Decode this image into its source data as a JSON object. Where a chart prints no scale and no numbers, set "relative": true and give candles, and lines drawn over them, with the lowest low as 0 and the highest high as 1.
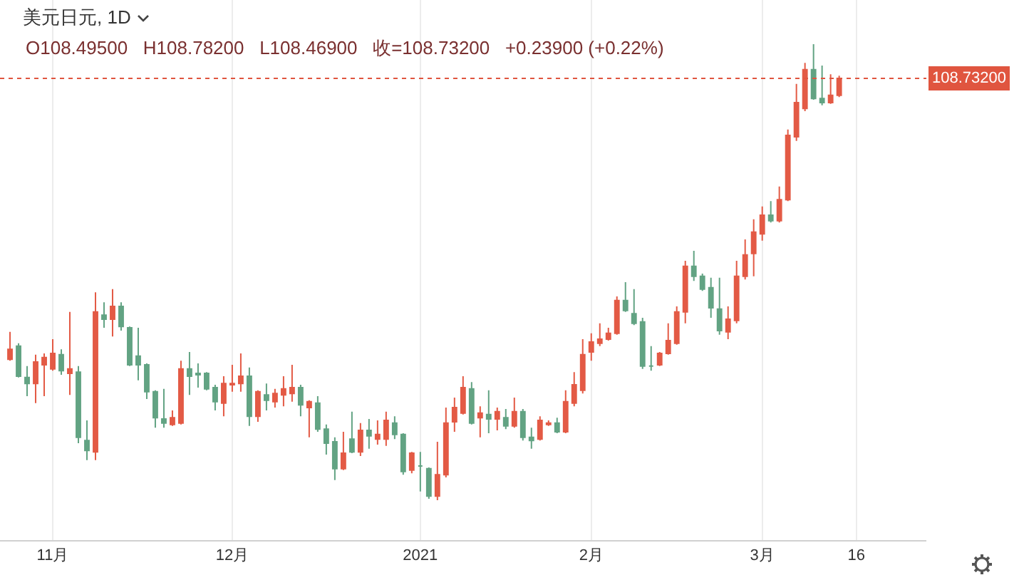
{
  "chart_data": {
    "type": "candlestick",
    "title": "美元日元, 1D",
    "subtitle": "O108.49500   H108.78200   L108.46900   收=108.73200   +0.23900 (+0.22%)",
    "relative": true,
    "categories": [
      null,
      null,
      null,
      null,
      null,
      "11月",
      null,
      null,
      null,
      null,
      null,
      null,
      null,
      null,
      null,
      null,
      null,
      null,
      null,
      null,
      null,
      null,
      null,
      null,
      null,
      null,
      "12月",
      null,
      null,
      null,
      null,
      null,
      null,
      null,
      null,
      null,
      null,
      null,
      null,
      null,
      null,
      null,
      null,
      null,
      null,
      null,
      null,
      null,
      "2021",
      null,
      null,
      null,
      null,
      null,
      null,
      null,
      null,
      null,
      null,
      null,
      null,
      null,
      null,
      null,
      null,
      null,
      null,
      null,
      "2月",
      null,
      null,
      null,
      null,
      null,
      null,
      null,
      null,
      null,
      null,
      null,
      null,
      null,
      null,
      null,
      null,
      null,
      null,
      null,
      "3月",
      null,
      null,
      null,
      null,
      null,
      null,
      null,
      null,
      null,
      null,
      "16"
    ],
    "ohlc": [
      [
        0.309,
        0.369,
        0.306,
        0.331
      ],
      [
        0.338,
        0.344,
        0.269,
        0.272
      ],
      [
        0.269,
        0.294,
        0.228,
        0.256
      ],
      [
        0.256,
        0.319,
        0.213,
        0.303
      ],
      [
        0.297,
        0.322,
        0.228,
        0.313
      ],
      [
        0.288,
        0.353,
        0.284,
        0.322
      ],
      [
        0.319,
        0.331,
        0.275,
        0.284
      ],
      [
        0.278,
        0.413,
        0.231,
        0.288
      ],
      [
        0.281,
        0.294,
        0.125,
        0.138
      ],
      [
        0.131,
        0.175,
        0.088,
        0.109
      ],
      [
        0.106,
        0.456,
        0.088,
        0.413
      ],
      [
        0.406,
        0.434,
        0.378,
        0.397
      ],
      [
        0.397,
        0.463,
        0.359,
        0.425
      ],
      [
        0.425,
        0.434,
        0.372,
        0.381
      ],
      [
        0.378,
        0.381,
        0.294,
        0.297
      ],
      [
        0.316,
        0.378,
        0.263,
        0.297
      ],
      [
        0.297,
        0.3,
        0.222,
        0.238
      ],
      [
        0.238,
        0.241,
        0.159,
        0.181
      ],
      [
        0.178,
        0.244,
        0.159,
        0.169
      ],
      [
        0.166,
        0.197,
        0.163,
        0.181
      ],
      [
        0.169,
        0.306,
        0.166,
        0.288
      ],
      [
        0.288,
        0.325,
        0.231,
        0.272
      ],
      [
        0.278,
        0.3,
        0.247,
        0.275
      ],
      [
        0.278,
        0.281,
        0.241,
        0.244
      ],
      [
        0.247,
        0.253,
        0.197,
        0.216
      ],
      [
        0.213,
        0.272,
        0.184,
        0.256
      ],
      [
        0.253,
        0.297,
        0.238,
        0.256
      ],
      [
        0.256,
        0.322,
        0.238,
        0.272
      ],
      [
        0.272,
        0.291,
        0.163,
        0.184
      ],
      [
        0.184,
        0.241,
        0.172,
        0.238
      ],
      [
        0.231,
        0.256,
        0.197,
        0.219
      ],
      [
        0.216,
        0.244,
        0.203,
        0.234
      ],
      [
        0.231,
        0.272,
        0.206,
        0.244
      ],
      [
        0.234,
        0.297,
        0.216,
        0.247
      ],
      [
        0.247,
        0.253,
        0.184,
        0.209
      ],
      [
        0.203,
        0.219,
        0.138,
        0.216
      ],
      [
        0.213,
        0.228,
        0.15,
        0.156
      ],
      [
        0.156,
        0.166,
        0.1,
        0.125
      ],
      [
        0.128,
        0.138,
        0.044,
        0.069
      ],
      [
        0.069,
        0.15,
        0.066,
        0.103
      ],
      [
        0.134,
        0.194,
        0.103,
        0.106
      ],
      [
        0.106,
        0.169,
        0.097,
        0.153
      ],
      [
        0.153,
        0.178,
        0.113,
        0.141
      ],
      [
        0.134,
        0.175,
        0.122,
        0.144
      ],
      [
        0.134,
        0.194,
        0.119,
        0.175
      ],
      [
        0.169,
        0.184,
        0.134,
        0.144
      ],
      [
        0.144,
        0.147,
        0.056,
        0.063
      ],
      [
        0.066,
        0.106,
        0.059,
        0.103
      ],
      [
        0.075,
        0.106,
        0.019,
        0.075
      ],
      [
        0.069,
        0.072,
        0.003,
        0.009
      ],
      [
        0.009,
        0.128,
        0,
        0.056
      ],
      [
        0.056,
        0.203,
        0.05,
        0.169
      ],
      [
        0.172,
        0.225,
        0.15,
        0.203
      ],
      [
        0.191,
        0.272,
        0.188,
        0.247
      ],
      [
        0.244,
        0.259,
        0.166,
        0.169
      ],
      [
        0.181,
        0.206,
        0.138,
        0.191
      ],
      [
        0.188,
        0.241,
        0.147,
        0.178
      ],
      [
        0.178,
        0.203,
        0.153,
        0.194
      ],
      [
        0.181,
        0.2,
        0.156,
        0.163
      ],
      [
        0.163,
        0.225,
        0.159,
        0.194
      ],
      [
        0.194,
        0.2,
        0.131,
        0.138
      ],
      [
        0.138,
        0.159,
        0.113,
        0.131
      ],
      [
        0.134,
        0.184,
        0.131,
        0.175
      ],
      [
        0.166,
        0.175,
        0.163,
        0.169
      ],
      [
        0.169,
        0.181,
        0.147,
        0.15
      ],
      [
        0.15,
        0.241,
        0.147,
        0.216
      ],
      [
        0.213,
        0.281,
        0.206,
        0.253
      ],
      [
        0.241,
        0.353,
        0.234,
        0.319
      ],
      [
        0.325,
        0.366,
        0.306,
        0.347
      ],
      [
        0.344,
        0.388,
        0.338,
        0.353
      ],
      [
        0.353,
        0.378,
        0.35,
        0.366
      ],
      [
        0.366,
        0.447,
        0.363,
        0.438
      ],
      [
        0.438,
        0.478,
        0.413,
        0.416
      ],
      [
        0.409,
        0.463,
        0.384,
        0.388
      ],
      [
        0.391,
        0.4,
        0.288,
        0.294
      ],
      [
        0.294,
        0.338,
        0.284,
        0.294
      ],
      [
        0.297,
        0.325,
        0.294,
        0.322
      ],
      [
        0.322,
        0.388,
        0.319,
        0.35
      ],
      [
        0.344,
        0.425,
        0.341,
        0.413
      ],
      [
        0.413,
        0.525,
        0.388,
        0.513
      ],
      [
        0.513,
        0.547,
        0.481,
        0.491
      ],
      [
        0.491,
        0.497,
        0.459,
        0.463
      ],
      [
        0.466,
        0.488,
        0.4,
        0.422
      ],
      [
        0.419,
        0.488,
        0.363,
        0.372
      ],
      [
        0.369,
        0.425,
        0.353,
        0.397
      ],
      [
        0.394,
        0.525,
        0.388,
        0.491
      ],
      [
        0.491,
        0.572,
        0.484,
        0.538
      ],
      [
        0.541,
        0.616,
        0.491,
        0.588
      ],
      [
        0.584,
        0.644,
        0.569,
        0.625
      ],
      [
        0.625,
        0.656,
        0.609,
        0.613
      ],
      [
        0.613,
        0.688,
        0.609,
        0.659
      ],
      [
        0.659,
        0.813,
        0.656,
        0.8
      ],
      [
        0.797,
        0.913,
        0.788,
        0.872
      ],
      [
        0.859,
        0.959,
        0.853,
        0.944
      ],
      [
        0.944,
        1,
        0.878,
        0.881
      ],
      [
        0.881,
        0.953,
        0.866,
        0.872
      ],
      [
        0.872,
        0.934,
        0.869,
        0.888
      ],
      [
        0.888,
        0.931,
        0.884,
        0.925
      ],
      null,
      null
    ],
    "colors": [
      "#e35a45",
      "#62a383",
      "#62a383",
      "#e35a45",
      "#e35a45",
      "#e35a45",
      "#62a383",
      "#e35a45",
      "#62a383",
      "#62a383",
      "#e35a45",
      "#62a383",
      "#e35a45",
      "#62a383",
      "#62a383",
      "#62a383",
      "#62a383",
      "#62a383",
      "#62a383",
      "#e35a45",
      "#e35a45",
      "#62a383",
      "#62a383",
      "#62a383",
      "#62a383",
      "#e35a45",
      "#e35a45",
      "#e35a45",
      "#62a383",
      "#e35a45",
      "#62a383",
      "#e35a45",
      "#e35a45",
      "#e35a45",
      "#62a383",
      "#e35a45",
      "#62a383",
      "#62a383",
      "#62a383",
      "#e35a45",
      "#62a383",
      "#e35a45",
      "#62a383",
      "#e35a45",
      "#e35a45",
      "#62a383",
      "#62a383",
      "#e35a45",
      "#62a383",
      "#62a383",
      "#e35a45",
      "#e35a45",
      "#e35a45",
      "#e35a45",
      "#62a383",
      "#e35a45",
      "#62a383",
      "#e35a45",
      "#62a383",
      "#e35a45",
      "#62a383",
      "#62a383",
      "#e35a45",
      "#e35a45",
      "#62a383",
      "#e35a45",
      "#e35a45",
      "#e35a45",
      "#e35a45",
      "#e35a45",
      "#e35a45",
      "#e35a45",
      "#62a383",
      "#62a383",
      "#62a383",
      "#62a383",
      "#e35a45",
      "#e35a45",
      "#e35a45",
      "#e35a45",
      "#62a383",
      "#62a383",
      "#62a383",
      "#62a383",
      "#e35a45",
      "#e35a45",
      "#e35a45",
      "#e35a45",
      "#e35a45",
      "#62a383",
      "#e35a45",
      "#e35a45",
      "#e35a45",
      "#e35a45",
      "#62a383",
      "#62a383",
      "#e35a45",
      "#e35a45",
      null,
      null
    ],
    "grid": "x",
    "tick_labels": "x",
    "ref_lines": [
      {
        "axis": "y",
        "value": 0.925,
        "color": "#e0553f",
        "line_style": "dotted"
      }
    ],
    "annotations": [
      "108.73200"
    ]
  }
}
